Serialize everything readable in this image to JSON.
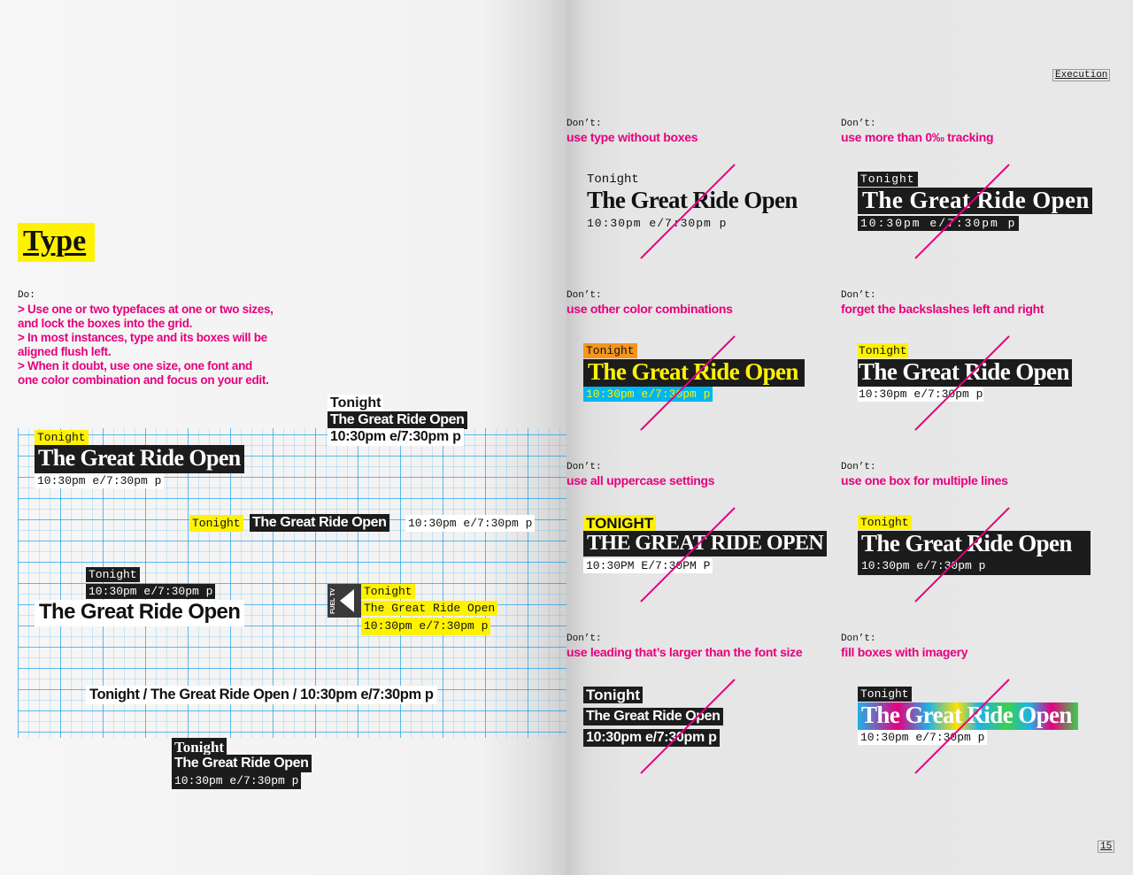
{
  "header": {
    "section": "Execution",
    "page_number": "15"
  },
  "type_section": {
    "title": "Type",
    "do_label": "Do:",
    "do_lines": [
      "> Use one or two typefaces at one or two sizes, and lock the boxes into the grid.",
      "> In most instances, type and its boxes will be aligned flush left.",
      "> When it doubt, use one size, one font and one color combination and focus on your edit."
    ]
  },
  "sample": {
    "tonight": "Tonight",
    "tonight_upper": "TONIGHT",
    "title": "The Great Ride Open",
    "title_upper": "THE GREAT RIDE OPEN",
    "time": "10:30pm e/7:30pm p",
    "time_upper": "10:30PM E/7:30PM P",
    "inline": "Tonight / The Great Ride Open / 10:30pm e/7:30pm p",
    "fuel_logo": "FUEL TV"
  },
  "donts": [
    {
      "label": "Don’t:",
      "text": "use type without boxes"
    },
    {
      "label": "Don’t:",
      "text": "use more than 0‰ tracking"
    },
    {
      "label": "Don’t:",
      "text": "use other color combinations"
    },
    {
      "label": "Don’t:",
      "text": "forget the backslashes left and right"
    },
    {
      "label": "Don’t:",
      "text": "use all uppercase settings"
    },
    {
      "label": "Don’t:",
      "text": "use one box for multiple lines"
    },
    {
      "label": "Don’t:",
      "text": "use leading that’s larger than the font size"
    },
    {
      "label": "Don’t:",
      "text": "fill boxes with imagery"
    }
  ],
  "colors": {
    "accent": "#e6007e",
    "highlight": "#fff200",
    "grid": "#0096e6",
    "box_dark": "#1c1c1c"
  }
}
